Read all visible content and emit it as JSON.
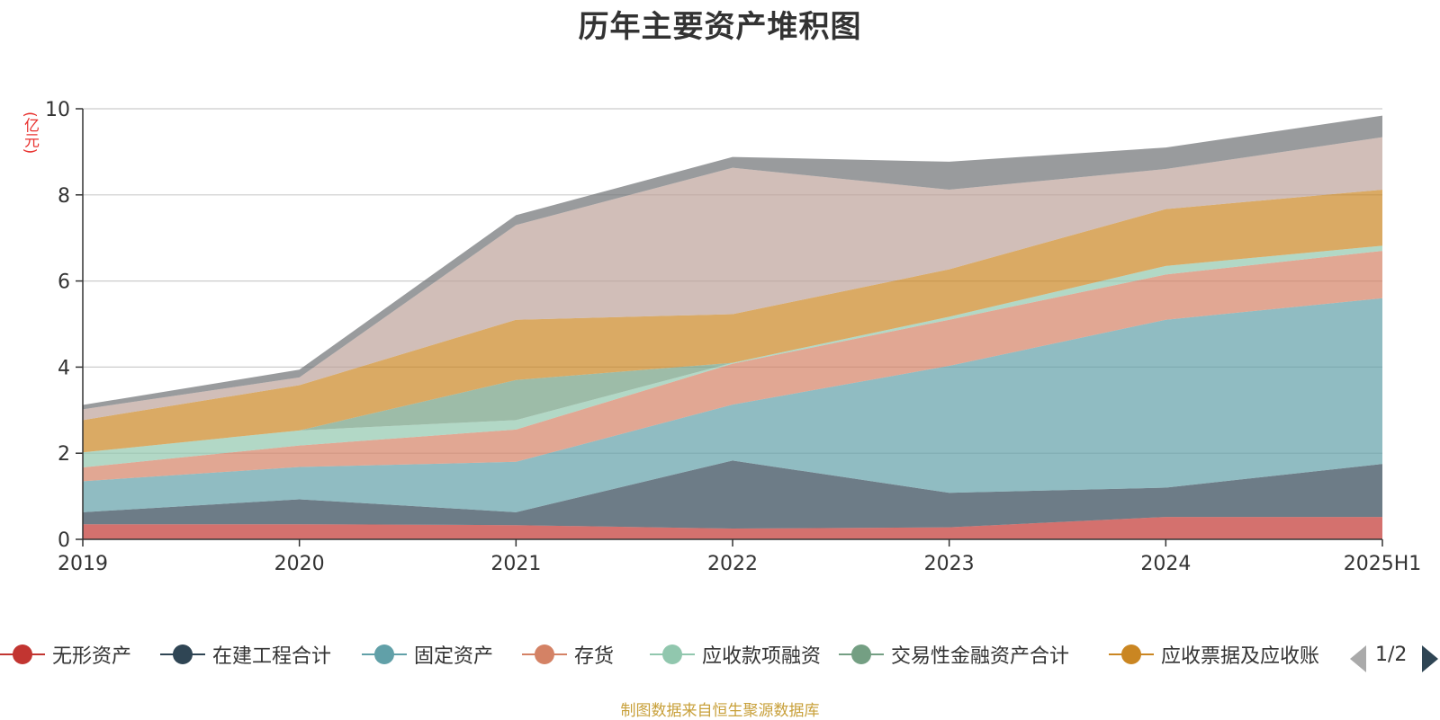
{
  "title": "历年主要资产堆积图",
  "unit": "(亿元)",
  "source": "制图数据来自恒生聚源数据库",
  "legend_page": "1/2",
  "chart_data": {
    "type": "area",
    "stacked": true,
    "title": "历年主要资产堆积图",
    "ylabel": "(亿元)",
    "ylim": [
      0,
      10
    ],
    "yticks": [
      0,
      2,
      4,
      6,
      8,
      10
    ],
    "grid": true,
    "legend_position": "bottom",
    "categories": [
      "2019",
      "2020",
      "2021",
      "2022",
      "2023",
      "2024",
      "2025H1"
    ],
    "series": [
      {
        "name": "无形资产",
        "color": "#c23531",
        "values": [
          0.35,
          0.35,
          0.33,
          0.25,
          0.28,
          0.52,
          0.52
        ]
      },
      {
        "name": "在建工程合计",
        "color": "#2f4554",
        "values": [
          0.28,
          0.58,
          0.3,
          1.58,
          0.8,
          0.68,
          1.23
        ]
      },
      {
        "name": "固定资产",
        "color": "#61a0a8",
        "values": [
          0.72,
          0.75,
          1.17,
          1.3,
          2.95,
          3.9,
          3.85
        ]
      },
      {
        "name": "存货",
        "color": "#d48265",
        "values": [
          0.32,
          0.5,
          0.75,
          0.95,
          1.07,
          1.05,
          1.1
        ]
      },
      {
        "name": "应收款项融资",
        "color": "#91c7ae",
        "values": [
          0.35,
          0.35,
          0.22,
          0.02,
          0.07,
          0.2,
          0.12
        ]
      },
      {
        "name": "交易性金融资产合计",
        "color": "#749f83",
        "values": [
          0,
          0,
          0.93,
          0,
          0,
          0,
          0
        ]
      },
      {
        "name": "应收票据及应收账",
        "color": "#ca8622",
        "values": [
          0.75,
          1.05,
          1.4,
          1.13,
          1.1,
          1.32,
          1.3
        ]
      },
      {
        "name": "",
        "color": "#bda29a",
        "values": [
          0.25,
          0.18,
          2.2,
          3.4,
          1.85,
          0.93,
          1.22
        ]
      },
      {
        "name": "",
        "color": "#6e7074",
        "values": [
          0.1,
          0.18,
          0.23,
          0.25,
          0.65,
          0.5,
          0.5
        ]
      }
    ]
  }
}
